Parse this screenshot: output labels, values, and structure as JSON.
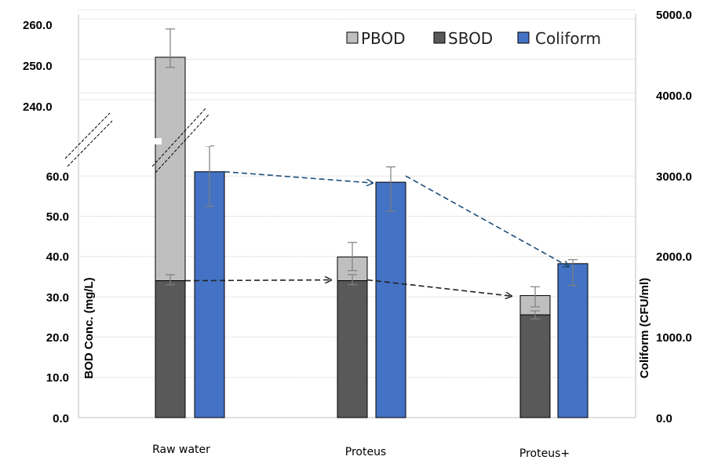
{
  "chart_data": {
    "type": "bar",
    "categories": [
      "Raw water",
      "Proteus",
      "Proteus+"
    ],
    "series": [
      {
        "name": "PBOD",
        "axis": "left",
        "stack": "bod",
        "values": [
          216.5,
          5.9,
          4.8
        ],
        "color": "#bfbfbf"
      },
      {
        "name": "SBOD",
        "axis": "left",
        "stack": "bod",
        "values": [
          34.0,
          34.0,
          25.5
        ],
        "color": "#595959"
      },
      {
        "name": "Coliform",
        "axis": "right",
        "values": [
          3050,
          2920,
          1910
        ],
        "color": "#4472c4"
      }
    ],
    "bod_totals": [
      250.5,
      39.9,
      30.3
    ],
    "error_bars": {
      "bod_total": [
        {
          "low": 248,
          "high": 257.5
        },
        {
          "low": 36.5,
          "high": 43.5
        },
        {
          "low": 27.5,
          "high": 32.5
        }
      ],
      "sbod": [
        {
          "low": 33.0,
          "high": 35.5
        },
        {
          "low": 33.0,
          "high": 35.5
        },
        {
          "low": 24.5,
          "high": 26.5
        }
      ],
      "coliform": [
        {
          "low": 2620,
          "high": 3370
        },
        {
          "low": 2560,
          "high": 3110
        },
        {
          "low": 1640,
          "high": 1960
        }
      ]
    },
    "ylabel": "BOD Conc. (mg/L)",
    "y2label": "Coliform (CFU/ml)",
    "yticks_lower": [
      "0.0",
      "10.0",
      "20.0",
      "30.0",
      "40.0",
      "50.0",
      "60.0"
    ],
    "yticks_upper": [
      "240.0",
      "250.0",
      "260.0"
    ],
    "y2ticks": [
      "0.0",
      "1000.0",
      "2000.0",
      "3000.0",
      "4000.0",
      "5000.0"
    ],
    "ylim_lower": [
      0,
      70
    ],
    "ylim_upper": [
      230,
      260
    ],
    "y2lim": [
      0,
      5000
    ],
    "axis_break": true,
    "grid": true,
    "legend": "top-right",
    "legend_entries": [
      "PBOD",
      "SBOD",
      "Coliform"
    ],
    "trend_arrows": [
      {
        "series": "SBOD",
        "from": "Raw water",
        "to": "Proteus"
      },
      {
        "series": "SBOD",
        "from": "Proteus",
        "to": "Proteus+"
      },
      {
        "series": "Coliform",
        "from": "Raw water",
        "to": "Proteus"
      },
      {
        "series": "Coliform",
        "from": "Proteus",
        "to": "Proteus+"
      }
    ]
  }
}
